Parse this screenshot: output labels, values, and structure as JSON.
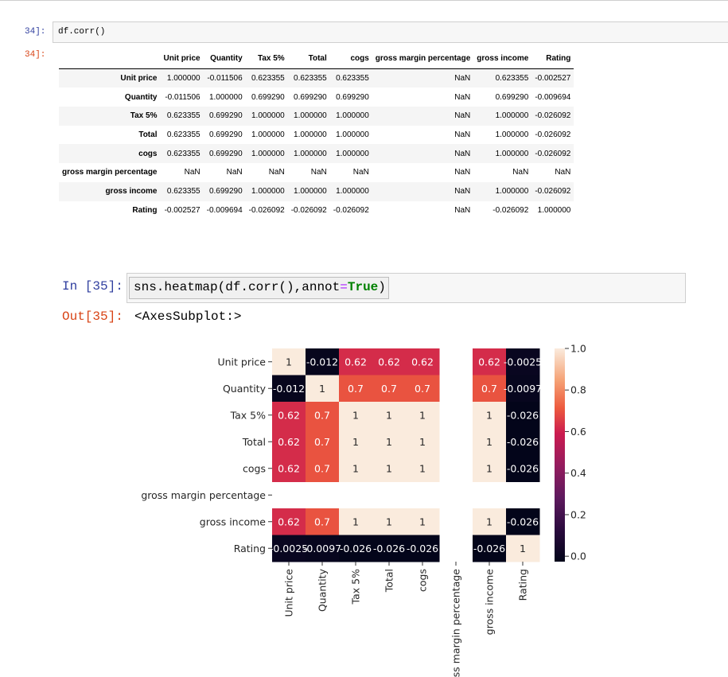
{
  "cell34": {
    "in_prompt": "34]:",
    "code": "df.corr()",
    "out_prompt": "34]:",
    "columns": [
      "Unit price",
      "Quantity",
      "Tax 5%",
      "Total",
      "cogs",
      "gross margin percentage",
      "gross income",
      "Rating"
    ],
    "rows": [
      {
        "label": "Unit price",
        "cells": [
          "1.000000",
          "-0.011506",
          "0.623355",
          "0.623355",
          "0.623355",
          "NaN",
          "0.623355",
          "-0.002527"
        ]
      },
      {
        "label": "Quantity",
        "cells": [
          "-0.011506",
          "1.000000",
          "0.699290",
          "0.699290",
          "0.699290",
          "NaN",
          "0.699290",
          "-0.009694"
        ]
      },
      {
        "label": "Tax 5%",
        "cells": [
          "0.623355",
          "0.699290",
          "1.000000",
          "1.000000",
          "1.000000",
          "NaN",
          "1.000000",
          "-0.026092"
        ]
      },
      {
        "label": "Total",
        "cells": [
          "0.623355",
          "0.699290",
          "1.000000",
          "1.000000",
          "1.000000",
          "NaN",
          "1.000000",
          "-0.026092"
        ]
      },
      {
        "label": "cogs",
        "cells": [
          "0.623355",
          "0.699290",
          "1.000000",
          "1.000000",
          "1.000000",
          "NaN",
          "1.000000",
          "-0.026092"
        ]
      },
      {
        "label": "gross margin percentage",
        "cells": [
          "NaN",
          "NaN",
          "NaN",
          "NaN",
          "NaN",
          "NaN",
          "NaN",
          "NaN"
        ]
      },
      {
        "label": "gross income",
        "cells": [
          "0.623355",
          "0.699290",
          "1.000000",
          "1.000000",
          "1.000000",
          "NaN",
          "1.000000",
          "-0.026092"
        ]
      },
      {
        "label": "Rating",
        "cells": [
          "-0.002527",
          "-0.009694",
          "-0.026092",
          "-0.026092",
          "-0.026092",
          "NaN",
          "-0.026092",
          "1.000000"
        ]
      }
    ]
  },
  "cell35": {
    "in_prompt": "In [35]:",
    "code_prefix": "sns.heatmap(df.corr(),annot",
    "code_eq": "=",
    "code_true": "True",
    "code_suffix": ")",
    "out_prompt": "Out[35]:",
    "output_text": "<AxesSubplot:>"
  },
  "chart_data": {
    "type": "heatmap",
    "x_labels": [
      "Unit price",
      "Quantity",
      "Tax 5%",
      "Total",
      "cogs",
      "gross margin percentage",
      "gross income",
      "Rating"
    ],
    "y_labels": [
      "Unit price",
      "Quantity",
      "Tax 5%",
      "Total",
      "cogs",
      "gross margin percentage",
      "gross income",
      "Rating"
    ],
    "values": [
      [
        1,
        -0.011506,
        0.623355,
        0.623355,
        0.623355,
        null,
        0.623355,
        -0.002527
      ],
      [
        -0.011506,
        1,
        0.69929,
        0.69929,
        0.69929,
        null,
        0.69929,
        -0.009694
      ],
      [
        0.623355,
        0.69929,
        1,
        1,
        1,
        null,
        1,
        -0.026092
      ],
      [
        0.623355,
        0.69929,
        1,
        1,
        1,
        null,
        1,
        -0.026092
      ],
      [
        0.623355,
        0.69929,
        1,
        1,
        1,
        null,
        1,
        -0.026092
      ],
      [
        null,
        null,
        null,
        null,
        null,
        null,
        null,
        null
      ],
      [
        0.623355,
        0.69929,
        1,
        1,
        1,
        null,
        1,
        -0.026092
      ],
      [
        -0.002527,
        -0.009694,
        -0.026092,
        -0.026092,
        -0.026092,
        null,
        -0.026092,
        1
      ]
    ],
    "annotations": [
      [
        "1",
        "-0.012",
        "0.62",
        "0.62",
        "0.62",
        "",
        "0.62",
        "-0.0025"
      ],
      [
        "-0.012",
        "1",
        "0.7",
        "0.7",
        "0.7",
        "",
        "0.7",
        "-0.0097"
      ],
      [
        "0.62",
        "0.7",
        "1",
        "1",
        "1",
        "",
        "1",
        "-0.026"
      ],
      [
        "0.62",
        "0.7",
        "1",
        "1",
        "1",
        "",
        "1",
        "-0.026"
      ],
      [
        "0.62",
        "0.7",
        "1",
        "1",
        "1",
        "",
        "1",
        "-0.026"
      ],
      [
        "",
        "",
        "",
        "",
        "",
        "",
        "",
        ""
      ],
      [
        "0.62",
        "0.7",
        "1",
        "1",
        "1",
        "",
        "1",
        "-0.026"
      ],
      [
        "-0.0025",
        "-0.0097",
        "-0.026",
        "-0.026",
        "-0.026",
        "",
        "-0.026",
        "1"
      ]
    ],
    "colorbar": {
      "ticks": [
        1.0,
        0.8,
        0.6,
        0.4,
        0.2,
        0.0
      ],
      "tick_labels": [
        "1.0",
        "0.8",
        "0.6",
        "0.4",
        "0.2",
        "0.0"
      ],
      "range": [
        -0.026092,
        1
      ]
    },
    "colormap": "rocket",
    "missing_color": "#ffffff"
  }
}
